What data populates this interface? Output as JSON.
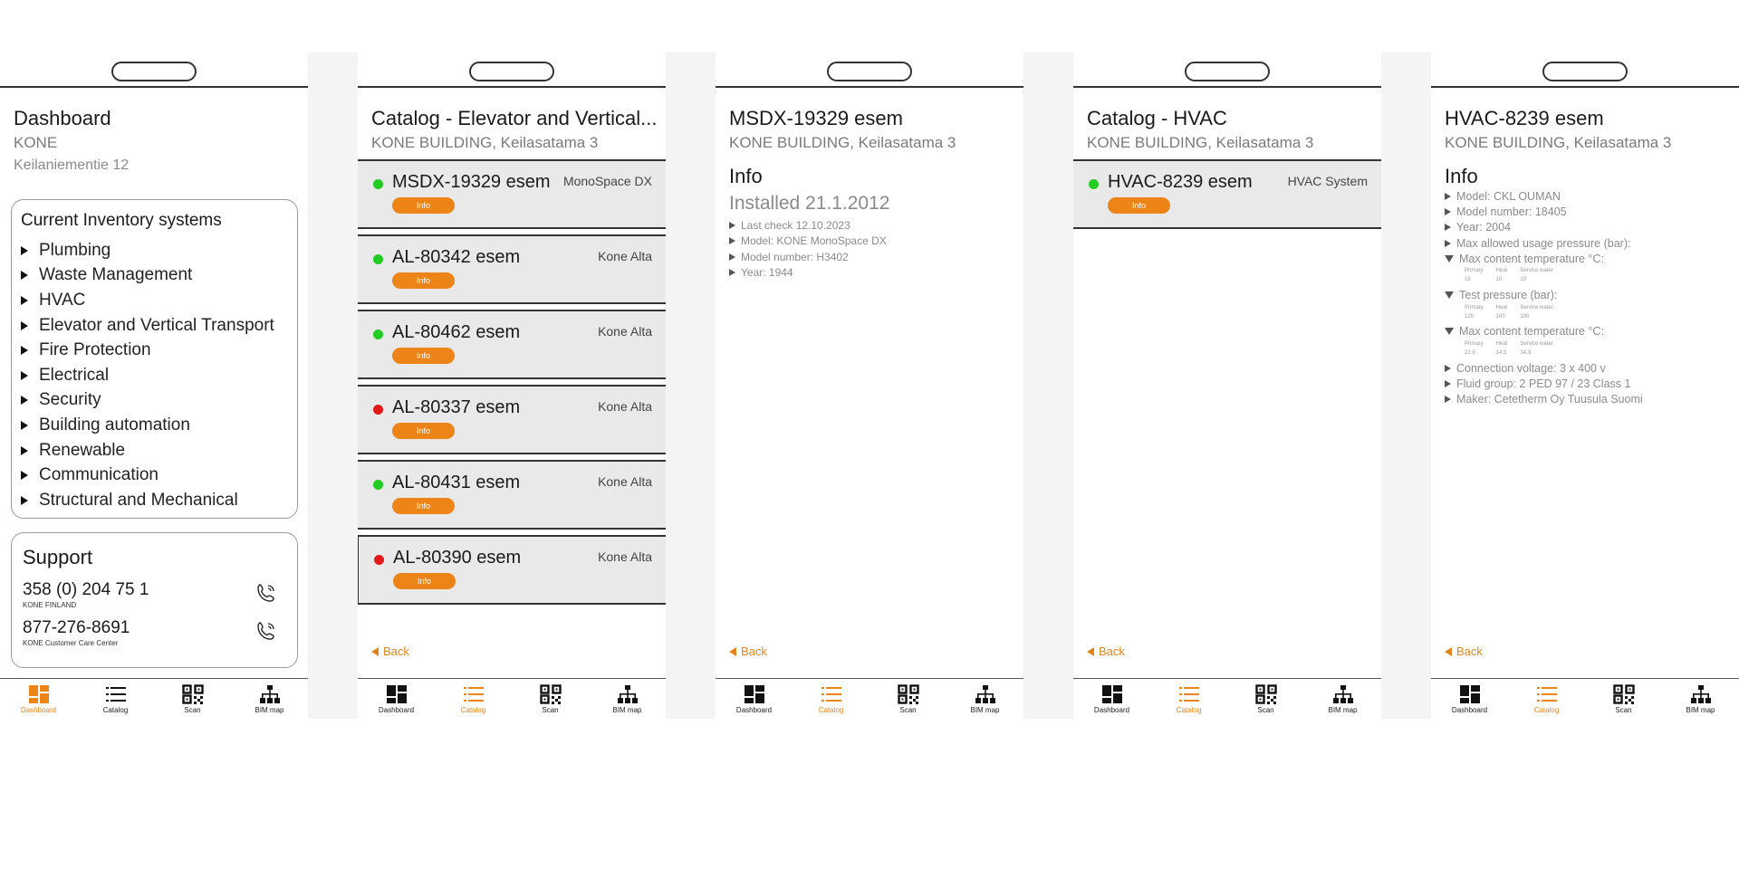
{
  "colors": {
    "accent": "#ec8417",
    "status_ok": "#22cc22",
    "status_alert": "#e31919"
  },
  "nav": {
    "dashboard": "Dashboard",
    "catalog": "Catalog",
    "scan": "Scan",
    "bim": "BIM map"
  },
  "back_label": "Back",
  "info_button": "Info",
  "dashboard": {
    "title": "Dashboard",
    "company": "KONE",
    "address": "Keilaniementie 12",
    "inventory_title": "Current Inventory systems",
    "inventory": [
      "Plumbing",
      "Waste Management",
      "HVAC",
      "Elevator and Vertical Transport",
      "Fire Protection",
      "Electrical",
      "Security",
      "Building automation",
      "Renewable",
      "Communication",
      "Structural and Mechanical"
    ],
    "support_title": "Support",
    "phones": [
      {
        "number": "358 (0) 204 75 1",
        "label": "KONE FINLAND",
        "icon": "phone-icon"
      },
      {
        "number": "877-276-8691",
        "label": "KONE Customer Care Center",
        "icon": "phone-icon"
      }
    ]
  },
  "catalog_elevator": {
    "title": "Catalog - Elevator and Vertical...",
    "subtitle": "KONE BUILDING, Keilasatama 3",
    "items": [
      {
        "name": "MSDX-19329 esem",
        "type": "MonoSpace DX",
        "status": "green"
      },
      {
        "name": "AL-80342 esem",
        "type": "Kone Alta",
        "status": "green"
      },
      {
        "name": "AL-80462 esem",
        "type": "Kone Alta",
        "status": "green"
      },
      {
        "name": "AL-80337 esem",
        "type": "Kone Alta",
        "status": "red"
      },
      {
        "name": "AL-80431 esem",
        "type": "Kone Alta",
        "status": "green"
      },
      {
        "name": "AL-80390 esem",
        "type": "Kone Alta",
        "status": "red"
      }
    ]
  },
  "detail_elevator": {
    "title": "MSDX-19329 esem",
    "subtitle": "KONE BUILDING, Keilasatama 3",
    "info_heading": "Info",
    "installed": "Installed 21.1.2012",
    "details": [
      "Last check 12.10.2023",
      "Model: KONE MonoSpace DX",
      "Model number: H3402",
      "Year: 1944"
    ]
  },
  "catalog_hvac": {
    "title": "Catalog - HVAC",
    "subtitle": "KONE BUILDING, Keilasatama 3",
    "items": [
      {
        "name": "HVAC-8239 esem",
        "type": "HVAC System",
        "status": "green"
      }
    ]
  },
  "detail_hvac": {
    "title": "HVAC-8239 esem",
    "subtitle": "KONE BUILDING, Keilasatama 3",
    "info_heading": "Info",
    "lines_top": [
      "Model: CKL OUMAN",
      "Model number: 18405",
      "Year: 2004",
      "Max allowed usage pressure (bar):"
    ],
    "groups": [
      {
        "label": "Max content temperature °C:",
        "cols": [
          {
            "h": "Primary",
            "v": "16"
          },
          {
            "h": "Heat",
            "v": "10"
          },
          {
            "h": "Service water",
            "v": "10"
          }
        ]
      },
      {
        "label": "Test pressure (bar):",
        "cols": [
          {
            "h": "Primary",
            "v": "120"
          },
          {
            "h": "Heat",
            "v": "100"
          },
          {
            "h": "Service water",
            "v": "100"
          }
        ]
      },
      {
        "label": "Max content temperature °C:",
        "cols": [
          {
            "h": "Primary",
            "v": "22.9"
          },
          {
            "h": "Heat",
            "v": "14.3"
          },
          {
            "h": "Service water",
            "v": "14.3"
          }
        ]
      }
    ],
    "lines_bottom": [
      "Connection voltage: 3 x 400 v",
      "Fluid group: 2 PED 97 / 23 Class 1",
      "Maker: Cetetherm Oy Tuusula Suomi"
    ]
  }
}
